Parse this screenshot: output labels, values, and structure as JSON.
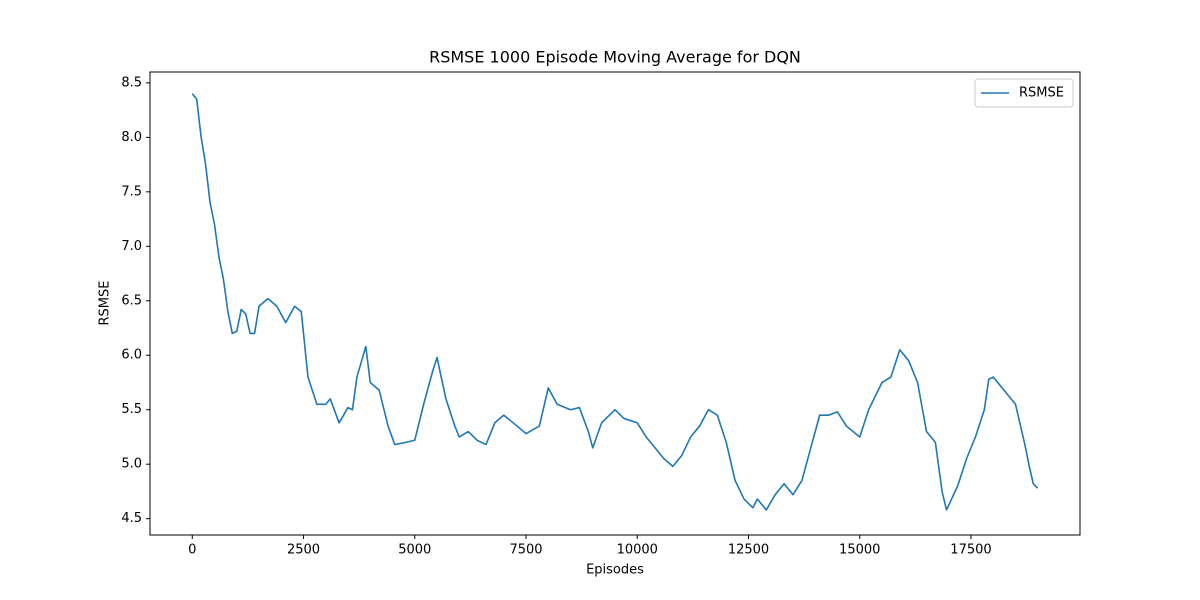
{
  "chart_data": {
    "type": "line",
    "title": "RSMSE 1000 Episode Moving Average for DQN",
    "x_label": "Episodes",
    "y_label": "RSMSE",
    "xlim": [
      -950,
      19950
    ],
    "ylim": [
      4.35,
      8.6
    ],
    "xticks": [
      0,
      2500,
      5000,
      7500,
      10000,
      12500,
      15000,
      17500
    ],
    "yticks": [
      4.5,
      {
        "value": 5,
        "label": "5.0"
      },
      5.5,
      {
        "value": 6,
        "label": "6.0"
      },
      6.5,
      {
        "value": 7,
        "label": "7.0"
      },
      7.5,
      {
        "value": 8,
        "label": "8.0"
      },
      8.5
    ],
    "grid": false,
    "legend": "upper right",
    "x": [
      0,
      100,
      200,
      300,
      400,
      500,
      600,
      700,
      800,
      900,
      1000,
      1100,
      1200,
      1300,
      1400,
      1500,
      1700,
      1900,
      2100,
      2300,
      2450,
      2600,
      2800,
      3000,
      3100,
      3300,
      3500,
      3600,
      3700,
      3900,
      4000,
      4200,
      4400,
      4550,
      4800,
      5000,
      5200,
      5400,
      5500,
      5700,
      5900,
      6000,
      6200,
      6400,
      6600,
      6800,
      7000,
      7300,
      7500,
      7800,
      8000,
      8200,
      8500,
      8700,
      8900,
      9000,
      9200,
      9500,
      9700,
      10000,
      10200,
      10400,
      10600,
      10800,
      11000,
      11200,
      11400,
      11600,
      11800,
      12000,
      12200,
      12400,
      12600,
      12700,
      12900,
      13100,
      13300,
      13500,
      13700,
      13900,
      14100,
      14300,
      14500,
      14700,
      15000,
      15200,
      15500,
      15700,
      15900,
      16100,
      16300,
      16500,
      16700,
      16850,
      16950,
      17200,
      17400,
      17600,
      17800,
      17900,
      18000,
      18200,
      18500,
      18700,
      18800,
      18900,
      19000
    ],
    "series": [
      {
        "name": "RSMSE",
        "color": "#1f77b4",
        "values": [
          8.4,
          8.35,
          8.0,
          7.75,
          7.4,
          7.2,
          6.9,
          6.7,
          6.4,
          6.2,
          6.22,
          6.42,
          6.38,
          6.2,
          6.2,
          6.45,
          6.52,
          6.45,
          6.3,
          6.45,
          6.4,
          5.8,
          5.55,
          5.55,
          5.6,
          5.38,
          5.52,
          5.5,
          5.8,
          6.08,
          5.75,
          5.68,
          5.35,
          5.18,
          5.2,
          5.22,
          5.55,
          5.85,
          5.98,
          5.6,
          5.35,
          5.25,
          5.3,
          5.22,
          5.18,
          5.38,
          5.45,
          5.35,
          5.28,
          5.35,
          5.7,
          5.55,
          5.5,
          5.52,
          5.3,
          5.15,
          5.38,
          5.5,
          5.42,
          5.38,
          5.25,
          5.15,
          5.05,
          4.98,
          5.08,
          5.25,
          5.35,
          5.5,
          5.45,
          5.2,
          4.85,
          4.68,
          4.6,
          4.68,
          4.58,
          4.72,
          4.82,
          4.72,
          4.85,
          5.15,
          5.45,
          5.45,
          5.48,
          5.35,
          5.25,
          5.5,
          5.75,
          5.8,
          6.05,
          5.95,
          5.75,
          5.3,
          5.2,
          4.75,
          4.58,
          4.8,
          5.05,
          5.25,
          5.5,
          5.78,
          5.8,
          5.7,
          5.55,
          5.2,
          5.0,
          4.82,
          4.78
        ]
      }
    ]
  }
}
